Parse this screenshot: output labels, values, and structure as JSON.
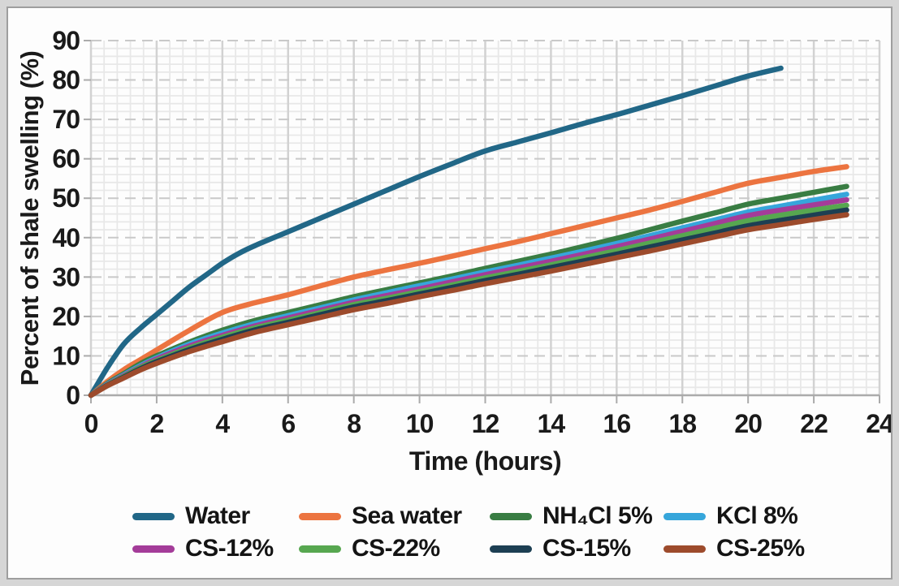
{
  "frame": {
    "outer_background": "#d6d6d6",
    "panel_background": "#fdfdfd",
    "panel_border": "#9e9e9e"
  },
  "colors": {
    "text": "#1a1a1a",
    "minor_grid": "#e8e8e8",
    "major_h_grid": "#c9c9c9",
    "major_v_grid": "#d2d2d2",
    "axis": "#ababab"
  },
  "chart_data": {
    "type": "line",
    "title": "",
    "xlabel": "Time (hours)",
    "ylabel": "Percent of shale swelling (%)",
    "xlim": [
      0,
      24
    ],
    "ylim": [
      0,
      90
    ],
    "xticks": [
      0,
      2,
      4,
      6,
      8,
      10,
      12,
      14,
      16,
      18,
      20,
      22,
      24
    ],
    "yticks": [
      0,
      10,
      20,
      30,
      40,
      50,
      60,
      70,
      80,
      90
    ],
    "grid": {
      "minor_x_step": 0.4,
      "minor_y_step": 2,
      "major_h_dashed": true,
      "major_v_solid": true
    },
    "legend_position": "bottom",
    "legend_rows": [
      [
        "Water",
        "Sea water",
        "NH₄Cl 5%",
        "KCl 8%"
      ],
      [
        "CS-12%",
        "CS-22%",
        "CS-15%",
        "CS-25%"
      ]
    ],
    "series": [
      {
        "name": "Water",
        "color": "#216787",
        "x": [
          0,
          0.5,
          1,
          1.5,
          2,
          2.5,
          3,
          3.5,
          4,
          4.5,
          5,
          6,
          7,
          8,
          9,
          10,
          11,
          12,
          13,
          14,
          15,
          16,
          17,
          18,
          19,
          20,
          21
        ],
        "y": [
          0,
          7,
          13,
          17,
          20.5,
          24,
          27.5,
          30.5,
          33.5,
          36,
          38,
          41.5,
          45,
          48.5,
          52,
          55.5,
          58.8,
          62,
          64.3,
          66.6,
          69,
          71.2,
          73.6,
          76,
          78.5,
          81,
          83
        ]
      },
      {
        "name": "Sea water",
        "color": "#EC7440",
        "x": [
          0,
          0.5,
          1,
          1.5,
          2,
          3,
          4,
          5,
          6,
          7,
          8,
          9,
          10,
          11,
          12,
          13,
          14,
          15,
          16,
          17,
          18,
          19,
          20,
          21,
          22,
          23
        ],
        "y": [
          0,
          3.5,
          6.5,
          9,
          11.5,
          16.5,
          21,
          23.5,
          25.5,
          27.8,
          30,
          31.8,
          33.5,
          35.3,
          37.2,
          39,
          41,
          43,
          45,
          47,
          49.2,
          51.5,
          53.8,
          55.3,
          56.8,
          58
        ]
      },
      {
        "name": "NH₄Cl 5%",
        "color": "#397D43",
        "x": [
          0,
          0.5,
          1,
          1.5,
          2,
          3,
          4,
          5,
          6,
          7,
          8,
          9,
          10,
          11,
          12,
          13,
          14,
          15,
          16,
          17,
          18,
          19,
          20,
          21,
          22,
          23
        ],
        "y": [
          0,
          3,
          5.5,
          8,
          10,
          13.5,
          16.5,
          19,
          21,
          23,
          25,
          26.8,
          28.5,
          30.3,
          32.2,
          34,
          35.8,
          37.8,
          39.8,
          42,
          44.2,
          46.3,
          48.5,
          50,
          51.5,
          53
        ]
      },
      {
        "name": "KCl 8%",
        "color": "#36A6DB",
        "x": [
          0,
          0.5,
          1,
          1.5,
          2,
          3,
          4,
          5,
          6,
          7,
          8,
          9,
          10,
          11,
          12,
          13,
          14,
          15,
          16,
          17,
          18,
          19,
          20,
          21,
          22,
          23
        ],
        "y": [
          0,
          2.8,
          5.2,
          7.5,
          9.5,
          13,
          15.8,
          18.2,
          20.2,
          22.2,
          24.2,
          26,
          27.8,
          29.5,
          31.3,
          33,
          34.8,
          36.6,
          38.5,
          40.5,
          42.5,
          44.5,
          46.5,
          48,
          49.5,
          51
        ]
      },
      {
        "name": "CS-12%",
        "color": "#A43C99",
        "x": [
          0,
          0.5,
          1,
          1.5,
          2,
          3,
          4,
          5,
          6,
          7,
          8,
          9,
          10,
          11,
          12,
          13,
          14,
          15,
          16,
          17,
          18,
          19,
          20,
          21,
          22,
          23
        ],
        "y": [
          0,
          2.7,
          5,
          7.2,
          9.2,
          12.5,
          15.2,
          17.6,
          19.6,
          21.6,
          23.6,
          25.3,
          27,
          28.8,
          30.6,
          32.3,
          34,
          35.8,
          37.7,
          39.6,
          41.6,
          43.6,
          45.6,
          47,
          48.3,
          49.6
        ]
      },
      {
        "name": "CS-22%",
        "color": "#57A750",
        "x": [
          0,
          0.5,
          1,
          1.5,
          2,
          3,
          4,
          5,
          6,
          7,
          8,
          9,
          10,
          11,
          12,
          13,
          14,
          15,
          16,
          17,
          18,
          19,
          20,
          21,
          22,
          23
        ],
        "y": [
          0,
          2.6,
          4.8,
          7,
          8.8,
          12,
          14.7,
          17.1,
          19,
          21,
          23,
          24.6,
          26.3,
          28,
          29.8,
          31.4,
          33.1,
          34.9,
          36.7,
          38.6,
          40.5,
          42.4,
          44.3,
          45.7,
          47,
          48.2
        ]
      },
      {
        "name": "CS-15%",
        "color": "#1D3F53",
        "x": [
          0,
          0.5,
          1,
          1.5,
          2,
          3,
          4,
          5,
          6,
          7,
          8,
          9,
          10,
          11,
          12,
          13,
          14,
          15,
          16,
          17,
          18,
          19,
          20,
          21,
          22,
          23
        ],
        "y": [
          0,
          2.5,
          4.6,
          6.7,
          8.5,
          11.6,
          14.2,
          16.6,
          18.5,
          20.5,
          22.4,
          24,
          25.7,
          27.4,
          29.1,
          30.7,
          32.4,
          34.1,
          35.8,
          37.6,
          39.4,
          41.2,
          43,
          44.4,
          45.7,
          47
        ]
      },
      {
        "name": "CS-25%",
        "color": "#9D4B2C",
        "x": [
          0,
          0.5,
          1,
          1.5,
          2,
          3,
          4,
          5,
          6,
          7,
          8,
          9,
          10,
          11,
          12,
          13,
          14,
          15,
          16,
          17,
          18,
          19,
          20,
          21,
          22,
          23
        ],
        "y": [
          0,
          2.4,
          4.4,
          6.4,
          8.1,
          11.1,
          13.6,
          16,
          17.9,
          19.8,
          21.7,
          23.3,
          25,
          26.6,
          28.3,
          29.9,
          31.5,
          33.2,
          34.9,
          36.6,
          38.4,
          40.2,
          42,
          43.3,
          44.6,
          45.8
        ]
      }
    ]
  }
}
